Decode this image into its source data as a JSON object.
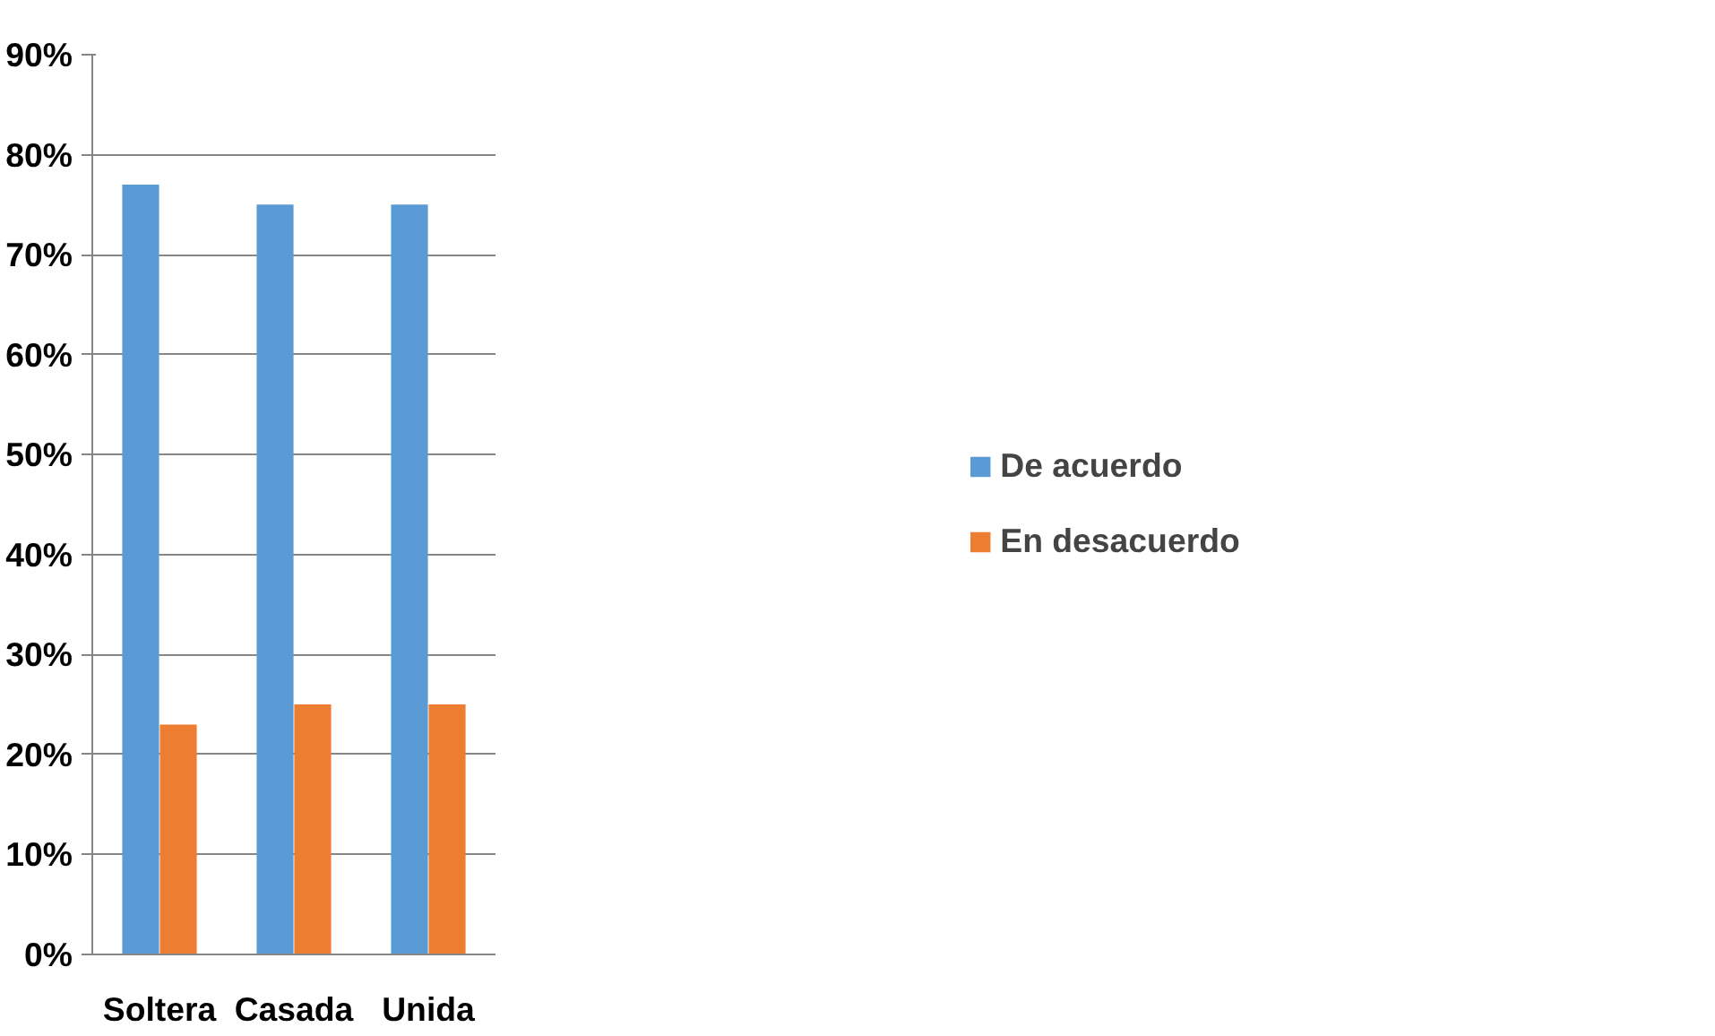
{
  "chart_data": {
    "type": "bar",
    "categories": [
      "Soltera",
      "Casada",
      "Unida"
    ],
    "series": [
      {
        "name": "De acuerdo",
        "color": "#5b9bd5",
        "values": [
          77,
          75,
          75
        ]
      },
      {
        "name": "En desacuerdo",
        "color": "#ed7d31",
        "values": [
          23,
          25,
          25
        ]
      }
    ],
    "ylim": [
      0,
      90
    ],
    "yticks": [
      {
        "value": 0,
        "label": "0%"
      },
      {
        "value": 10,
        "label": "10%"
      },
      {
        "value": 20,
        "label": "20%"
      },
      {
        "value": 30,
        "label": "30%"
      },
      {
        "value": 40,
        "label": "40%"
      },
      {
        "value": 50,
        "label": "50%"
      },
      {
        "value": 60,
        "label": "60%"
      },
      {
        "value": 70,
        "label": "70%"
      },
      {
        "value": 80,
        "label": "80%"
      },
      {
        "value": 90,
        "label": "90%"
      }
    ],
    "grid": "y",
    "legend": "right"
  }
}
